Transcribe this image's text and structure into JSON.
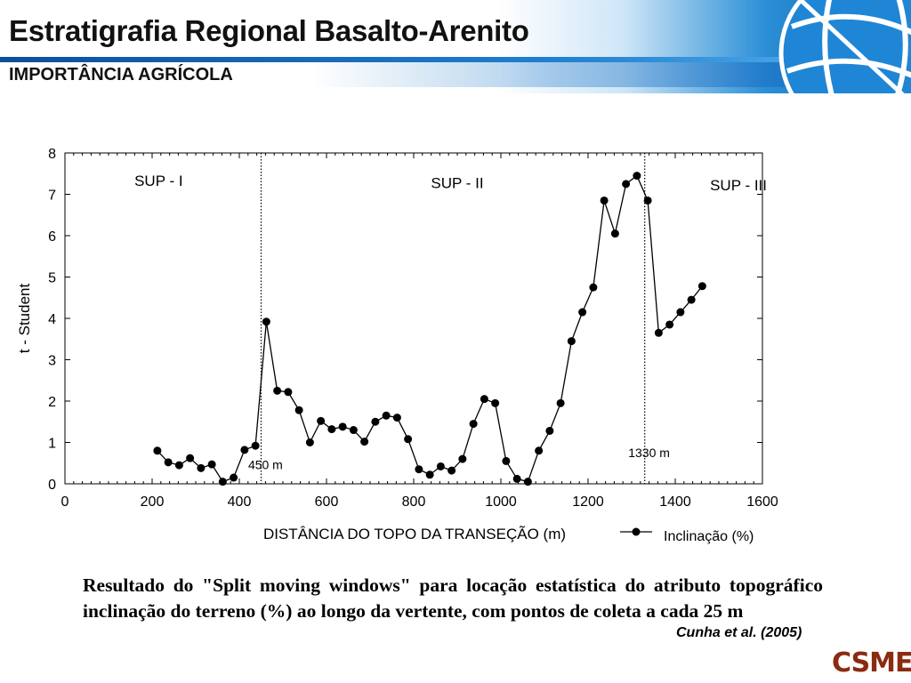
{
  "slide": {
    "title": "Estratigrafia Regional Basalto-Arenito",
    "subtitle": "IMPORTÂNCIA AGRÍCOLA",
    "caption": "Resultado do \"Split moving windows\" para locação estatística do atributo topográfico inclinação do terreno (%) ao longo da vertente, com pontos de coleta a cada 25 m",
    "citation": "Cunha et al. (2005)",
    "logo_text": "CSME",
    "logo_color": "#8a2b12",
    "header_icon": "globe-logo-icon"
  },
  "chart_data": {
    "type": "line",
    "xlabel": "DISTÂNCIA DO TOPO DA TRANSEÇÃO (m)",
    "ylabel": "t - Student",
    "xlim": [
      0,
      1600
    ],
    "ylim": [
      0,
      8
    ],
    "xticks": [
      0,
      200,
      400,
      600,
      800,
      1000,
      1200,
      1400,
      1600
    ],
    "yticks": [
      0,
      1,
      2,
      3,
      4,
      5,
      6,
      7,
      8
    ],
    "grid": false,
    "legend": {
      "placement": "bottom-right",
      "entries": [
        "Inclinação (%)"
      ]
    },
    "series": [
      {
        "name": "Inclinação (%)",
        "x": [
          212,
          237,
          262,
          287,
          312,
          337,
          362,
          387,
          412,
          437,
          462,
          487,
          512,
          537,
          562,
          587,
          612,
          637,
          662,
          687,
          712,
          737,
          762,
          787,
          812,
          837,
          862,
          887,
          912,
          937,
          962,
          987,
          1012,
          1037,
          1062,
          1087,
          1112,
          1137,
          1162,
          1187,
          1212,
          1237,
          1262,
          1287,
          1312,
          1337,
          1362,
          1387,
          1412,
          1437,
          1462
        ],
        "y": [
          0.8,
          0.52,
          0.45,
          0.62,
          0.38,
          0.47,
          0.05,
          0.15,
          0.82,
          0.92,
          3.92,
          2.25,
          2.22,
          1.78,
          1.0,
          1.52,
          1.32,
          1.38,
          1.3,
          1.02,
          1.5,
          1.65,
          1.6,
          1.08,
          0.35,
          0.22,
          0.42,
          0.32,
          0.6,
          1.45,
          2.05,
          1.95,
          0.55,
          0.12,
          0.05,
          0.8,
          1.28,
          1.95,
          3.45,
          4.15,
          4.75,
          6.85,
          6.05,
          7.25,
          7.45,
          6.85,
          3.65,
          3.85,
          4.15,
          4.45,
          4.78
        ]
      }
    ],
    "annotations": [
      {
        "text": "SUP - I",
        "x": 215,
        "y": 7.2
      },
      {
        "text": "SUP - II",
        "x": 900,
        "y": 7.15
      },
      {
        "text": "SUP - III",
        "x": 1545,
        "y": 7.1
      },
      {
        "text": "450 m",
        "x": 460,
        "y": 0.35
      },
      {
        "text": "1330 m",
        "x": 1340,
        "y": 0.65
      }
    ],
    "vlines": [
      450,
      1330
    ]
  }
}
